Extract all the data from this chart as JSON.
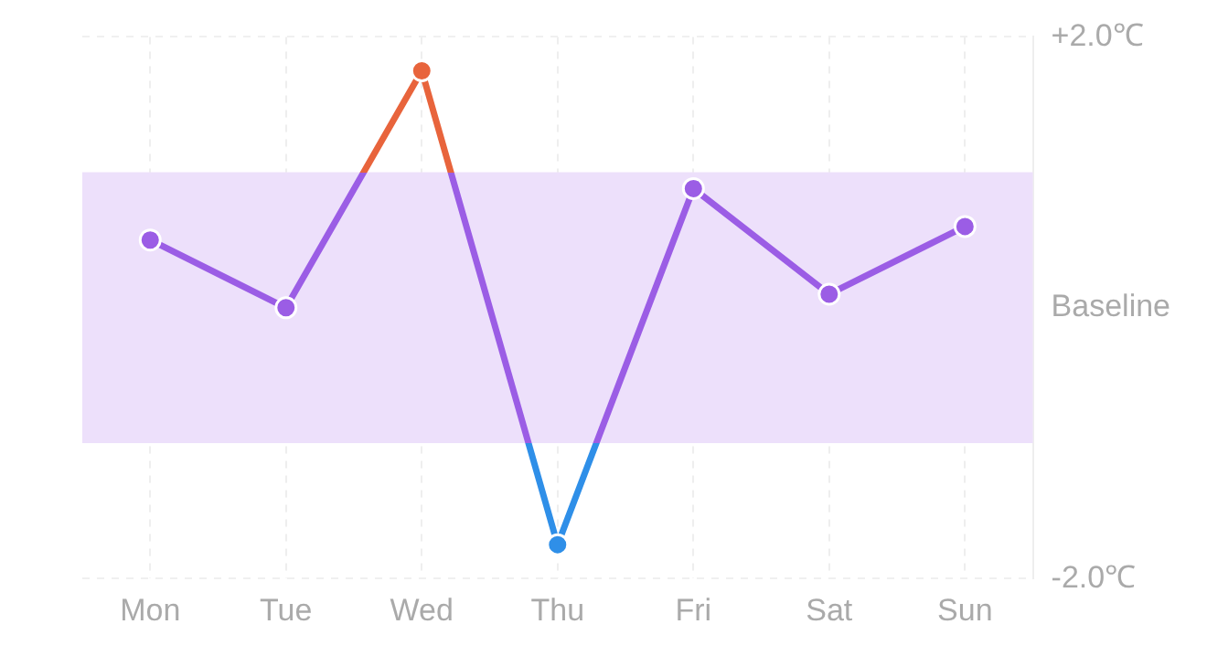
{
  "chart_data": {
    "type": "line",
    "categories": [
      "Mon",
      "Tue",
      "Wed",
      "Thu",
      "Fri",
      "Sat",
      "Sun"
    ],
    "series": [
      {
        "color": "#9b5de5",
        "colors": [
          "#9b5de5",
          "#9b5de5",
          "#e8643c",
          "#2f8fe8",
          "#9b5de5",
          "#9b5de5",
          "#9b5de5"
        ],
        "values": [
          0.5,
          0,
          1.75,
          -1.75,
          0.88,
          0.1,
          0.6
        ]
      }
    ],
    "ylim": [
      -2,
      2
    ],
    "yticks": [
      {
        "value": 2,
        "label": "+2.0℃"
      },
      {
        "value": 0,
        "label": "Baseline"
      },
      {
        "value": -2,
        "label": "-2.0℃"
      }
    ],
    "bands": [
      {
        "axis": "y",
        "from": -1,
        "to": 1,
        "color": "#ede0fb"
      }
    ],
    "grid": true,
    "marker": "circle",
    "line_style": "solid",
    "legend": false
  }
}
